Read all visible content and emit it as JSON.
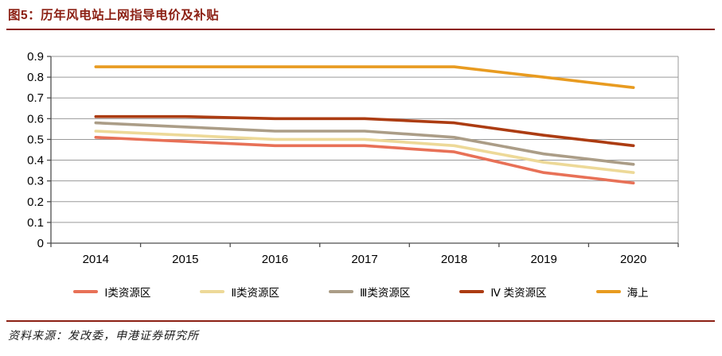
{
  "figure": {
    "title": "图5：历年风电站上网指导电价及补贴",
    "source": "资料来源：发改委，申港证券研究所"
  },
  "colors": {
    "title": "#8C2014",
    "rule": "#8C2014",
    "gridline": "#9A9A9A",
    "axis": "#4D4D4D",
    "tick_text": "#000000"
  },
  "chart_data": {
    "type": "line",
    "categories": [
      "2014",
      "2015",
      "2016",
      "2017",
      "2018",
      "2019",
      "2020"
    ],
    "series": [
      {
        "name": "Ⅰ类资源区",
        "color": "#E87157",
        "values": [
          0.51,
          0.49,
          0.47,
          0.47,
          0.44,
          0.34,
          0.29
        ]
      },
      {
        "name": "Ⅱ类资源区",
        "color": "#EDD998",
        "values": [
          0.54,
          0.52,
          0.5,
          0.5,
          0.47,
          0.39,
          0.34
        ]
      },
      {
        "name": "Ⅲ类资源区",
        "color": "#AB9D87",
        "values": [
          0.58,
          0.56,
          0.54,
          0.54,
          0.51,
          0.43,
          0.38
        ]
      },
      {
        "name": "Ⅳ 类资源区",
        "color": "#AC3C12",
        "values": [
          0.61,
          0.61,
          0.6,
          0.6,
          0.58,
          0.52,
          0.47
        ]
      },
      {
        "name": "海上",
        "color": "#E89B20",
        "values": [
          0.85,
          0.85,
          0.85,
          0.85,
          0.85,
          0.8,
          0.75
        ]
      }
    ],
    "title": "历年风电站上网指导电价及补贴",
    "xlabel": "",
    "ylabel": "",
    "ylim": [
      0,
      0.9
    ],
    "ytick_labels": [
      "0",
      "0.1",
      "0.2",
      "0.3",
      "0.4",
      "0.5",
      "0.6",
      "0.7",
      "0.8",
      "0.9"
    ],
    "grid": true,
    "legend_position": "bottom"
  }
}
